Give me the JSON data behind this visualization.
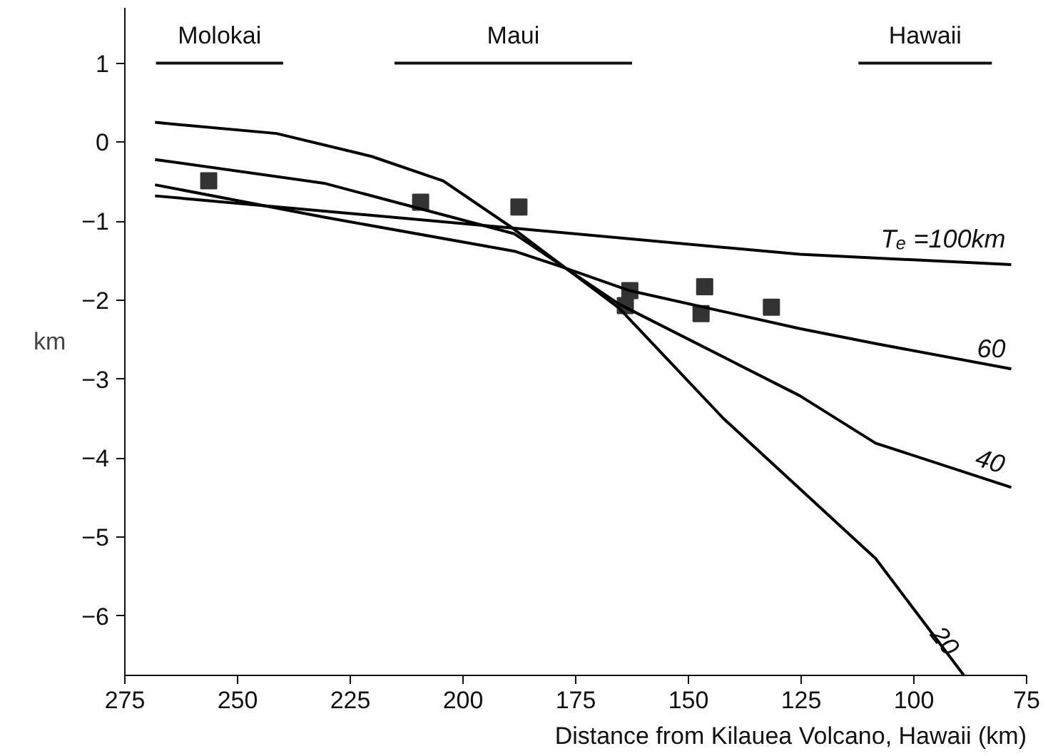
{
  "chart_data": {
    "type": "line",
    "xlabel": "Distance from Kilauea Volcano, Hawaii (km)",
    "ylabel": "km",
    "xlim": [
      275,
      75
    ],
    "xticks": [
      275,
      250,
      225,
      200,
      175,
      150,
      125,
      100,
      75
    ],
    "ylim": [
      -6.75,
      1.7
    ],
    "yticks": [
      1,
      0,
      -1,
      -2,
      -3,
      -4,
      -5,
      -6
    ],
    "grid": false,
    "legend": false,
    "line_style": "solid",
    "series": [
      {
        "type": "scatter",
        "marker": "square",
        "color": "#333333",
        "x": [
          256.4,
          209.4,
          187.6,
          163,
          164,
          146.4,
          147.2,
          131.6
        ],
        "values": [
          -0.49,
          -0.76,
          -0.82,
          -1.88,
          -2.07,
          -1.83,
          -2.17,
          -2.09
        ]
      },
      {
        "name": "Tₑ =100km",
        "color": "#000000",
        "x": [
          268.3,
          188.6,
          125.3,
          78.4
        ],
        "values": [
          -0.68,
          -1.09,
          -1.42,
          -1.55
        ]
      },
      {
        "name": "60",
        "color": "#000000",
        "x": [
          268.3,
          230.8,
          188.6,
          178,
          163,
          125.3,
          108.5,
          78.4
        ],
        "values": [
          -0.54,
          -0.95,
          -1.38,
          -1.58,
          -1.88,
          -2.36,
          -2.55,
          -2.87
        ]
      },
      {
        "name": "40",
        "color": "#000000",
        "x": [
          268.3,
          230.8,
          188.6,
          165.4,
          125.3,
          108.5,
          78.4
        ],
        "values": [
          -0.22,
          -0.52,
          -1.16,
          -2.05,
          -3.21,
          -3.81,
          -4.37
        ]
      },
      {
        "name": "20",
        "color": "#000000",
        "x": [
          268.3,
          241.4,
          220.3,
          204.4,
          189.7,
          165.4,
          142.2,
          108.5,
          88.9
        ],
        "values": [
          0.25,
          0.11,
          -0.18,
          -0.49,
          -1.06,
          -2.1,
          -3.5,
          -5.27,
          -6.75
        ]
      },
      {
        "name": "Molokai",
        "color": "#111111",
        "x": [
          268.1,
          239.9
        ],
        "values": [
          1,
          1
        ]
      },
      {
        "name": "Maui",
        "color": "#111111",
        "x": [
          215.2,
          162.5
        ],
        "values": [
          1,
          1
        ]
      },
      {
        "name": "Hawaii",
        "color": "#111111",
        "x": [
          112.3,
          82.7
        ],
        "values": [
          1,
          1
        ]
      }
    ]
  }
}
